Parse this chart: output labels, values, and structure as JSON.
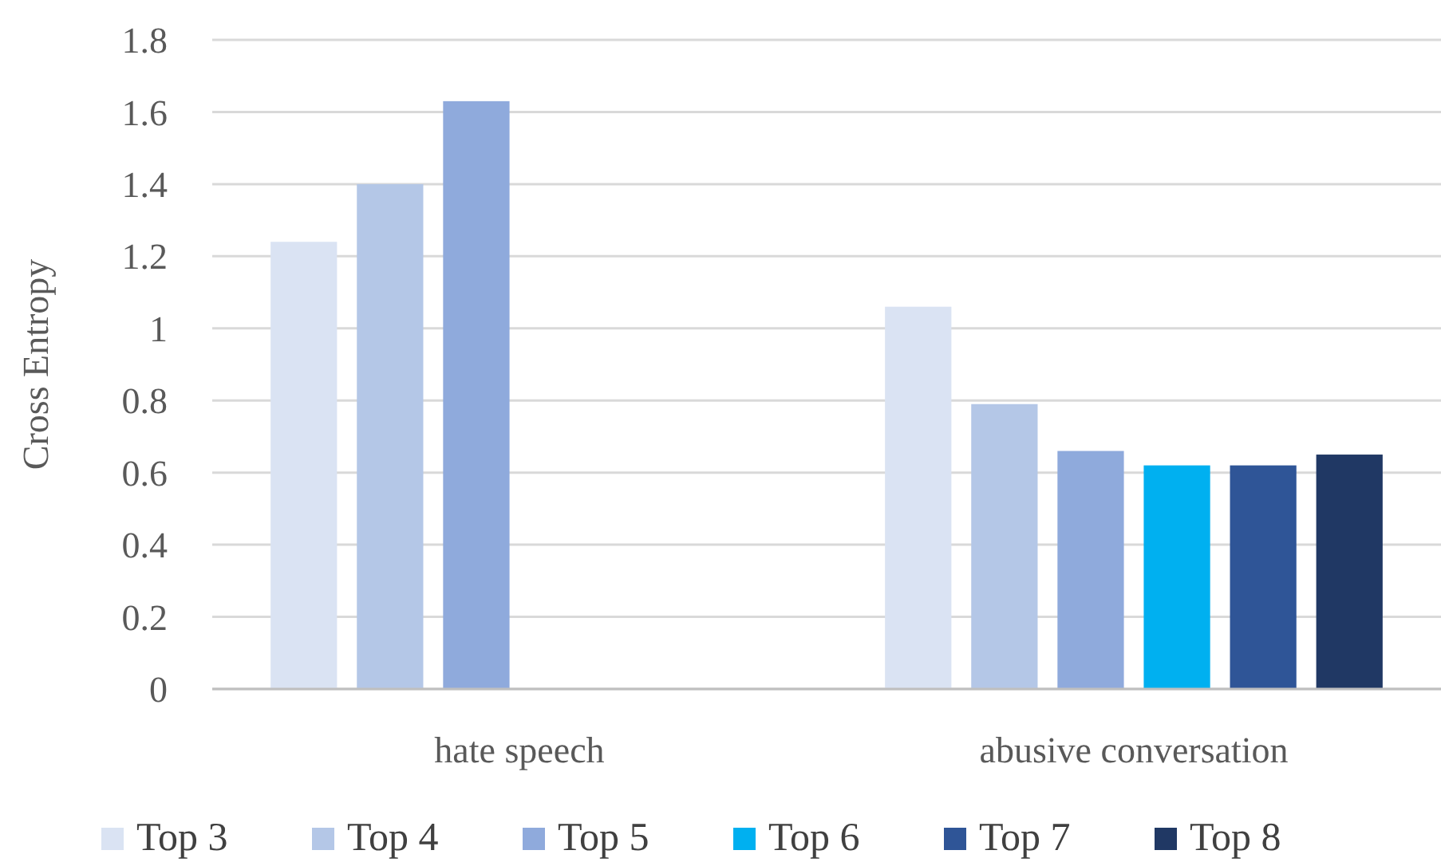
{
  "chart_data": {
    "type": "bar",
    "ylabel": "Cross Entropy",
    "categories": [
      "hate speech",
      "abusive conversation"
    ],
    "series": [
      {
        "name": "Top 3",
        "color": "#dae3f3",
        "values": [
          1.24,
          1.06
        ]
      },
      {
        "name": "Top 4",
        "color": "#b4c7e7",
        "values": [
          1.4,
          0.79
        ]
      },
      {
        "name": "Top 5",
        "color": "#8faadc",
        "values": [
          1.63,
          0.66
        ]
      },
      {
        "name": "Top 6",
        "color": "#00b0f0",
        "values": [
          null,
          0.62
        ]
      },
      {
        "name": "Top 7",
        "color": "#2f5597",
        "values": [
          null,
          0.62
        ]
      },
      {
        "name": "Top 8",
        "color": "#203864",
        "values": [
          null,
          0.65
        ]
      }
    ],
    "ylim": [
      0,
      1.8
    ],
    "yticks": [
      0,
      0.2,
      0.4,
      0.6,
      0.8,
      1,
      1.2,
      1.4,
      1.6,
      1.8
    ],
    "grid": "y",
    "legend": "bottom"
  }
}
